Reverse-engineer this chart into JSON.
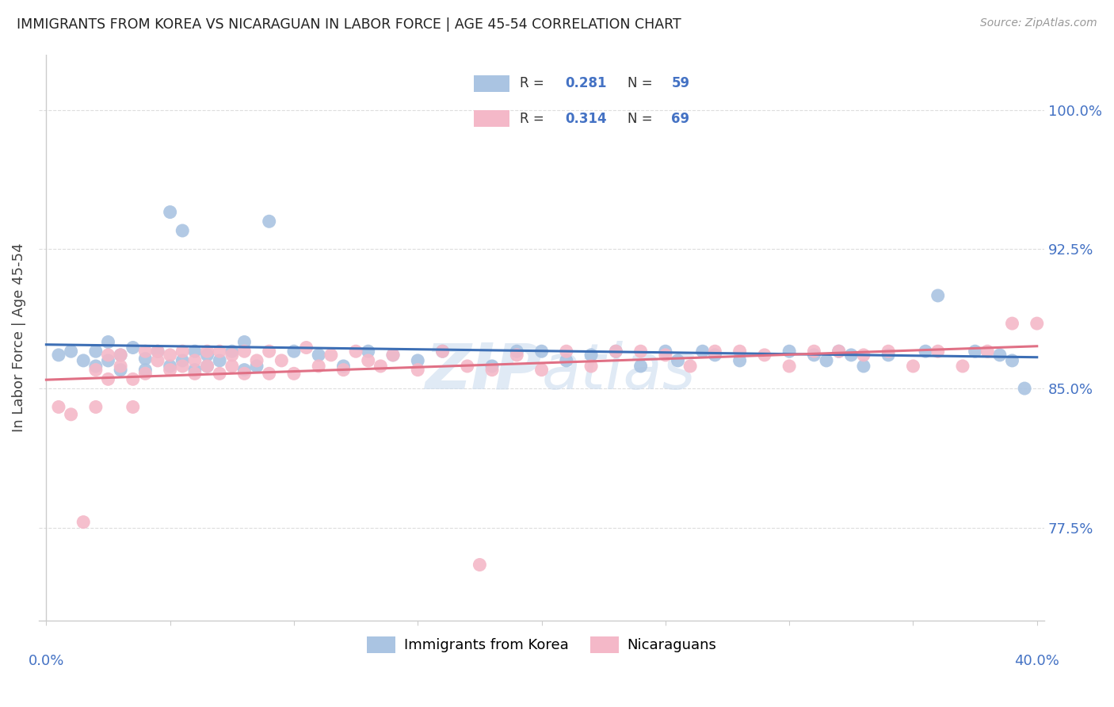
{
  "title": "IMMIGRANTS FROM KOREA VS NICARAGUAN IN LABOR FORCE | AGE 45-54 CORRELATION CHART",
  "source": "Source: ZipAtlas.com",
  "ylabel": "In Labor Force | Age 45-54",
  "ytick_labels": [
    "77.5%",
    "85.0%",
    "92.5%",
    "100.0%"
  ],
  "ytick_values": [
    0.775,
    0.85,
    0.925,
    1.0
  ],
  "xlim": [
    0.0,
    0.4
  ],
  "ylim": [
    0.725,
    1.03
  ],
  "korea_R": 0.281,
  "korea_N": 59,
  "nicaragua_R": 0.314,
  "nicaragua_N": 69,
  "korea_color": "#aac4e2",
  "nicaragua_color": "#f4b8c8",
  "korea_line_color": "#3d6fb5",
  "nicaragua_line_color": "#e07085",
  "value_color": "#4472c4",
  "watermark": "ZIPatlas",
  "korea_x": [
    0.005,
    0.01,
    0.015,
    0.02,
    0.02,
    0.025,
    0.025,
    0.03,
    0.03,
    0.035,
    0.04,
    0.04,
    0.045,
    0.05,
    0.05,
    0.055,
    0.055,
    0.06,
    0.06,
    0.065,
    0.065,
    0.07,
    0.075,
    0.08,
    0.08,
    0.085,
    0.09,
    0.1,
    0.11,
    0.12,
    0.13,
    0.14,
    0.15,
    0.16,
    0.18,
    0.19,
    0.2,
    0.21,
    0.22,
    0.23,
    0.24,
    0.25,
    0.255,
    0.265,
    0.27,
    0.28,
    0.3,
    0.31,
    0.315,
    0.32,
    0.325,
    0.33,
    0.34,
    0.355,
    0.36,
    0.375,
    0.385,
    0.39,
    0.395
  ],
  "korea_y": [
    0.868,
    0.87,
    0.865,
    0.87,
    0.862,
    0.875,
    0.865,
    0.868,
    0.86,
    0.872,
    0.866,
    0.86,
    0.87,
    0.945,
    0.862,
    0.935,
    0.865,
    0.87,
    0.86,
    0.862,
    0.868,
    0.865,
    0.87,
    0.875,
    0.86,
    0.862,
    0.94,
    0.87,
    0.868,
    0.862,
    0.87,
    0.868,
    0.865,
    0.87,
    0.862,
    0.87,
    0.87,
    0.865,
    0.868,
    0.87,
    0.862,
    0.87,
    0.865,
    0.87,
    0.868,
    0.865,
    0.87,
    0.868,
    0.865,
    0.87,
    0.868,
    0.862,
    0.868,
    0.87,
    0.9,
    0.87,
    0.868,
    0.865,
    0.85
  ],
  "nicaragua_x": [
    0.005,
    0.01,
    0.015,
    0.02,
    0.02,
    0.025,
    0.025,
    0.03,
    0.03,
    0.035,
    0.035,
    0.04,
    0.04,
    0.045,
    0.045,
    0.05,
    0.05,
    0.055,
    0.055,
    0.06,
    0.06,
    0.065,
    0.065,
    0.07,
    0.07,
    0.075,
    0.075,
    0.08,
    0.08,
    0.085,
    0.09,
    0.09,
    0.095,
    0.1,
    0.105,
    0.11,
    0.115,
    0.12,
    0.125,
    0.13,
    0.135,
    0.14,
    0.15,
    0.16,
    0.17,
    0.175,
    0.18,
    0.19,
    0.2,
    0.21,
    0.22,
    0.23,
    0.24,
    0.25,
    0.26,
    0.27,
    0.28,
    0.29,
    0.3,
    0.31,
    0.32,
    0.33,
    0.34,
    0.35,
    0.36,
    0.37,
    0.38,
    0.39,
    0.4
  ],
  "nicaragua_y": [
    0.84,
    0.836,
    0.778,
    0.86,
    0.84,
    0.868,
    0.855,
    0.862,
    0.868,
    0.855,
    0.84,
    0.87,
    0.858,
    0.865,
    0.87,
    0.86,
    0.868,
    0.862,
    0.87,
    0.858,
    0.865,
    0.87,
    0.862,
    0.858,
    0.87,
    0.862,
    0.868,
    0.87,
    0.858,
    0.865,
    0.87,
    0.858,
    0.865,
    0.858,
    0.872,
    0.862,
    0.868,
    0.86,
    0.87,
    0.865,
    0.862,
    0.868,
    0.86,
    0.87,
    0.862,
    0.755,
    0.86,
    0.868,
    0.86,
    0.87,
    0.862,
    0.87,
    0.87,
    0.868,
    0.862,
    0.87,
    0.87,
    0.868,
    0.862,
    0.87,
    0.87,
    0.868,
    0.87,
    0.862,
    0.87,
    0.862,
    0.87,
    0.885,
    0.885
  ]
}
